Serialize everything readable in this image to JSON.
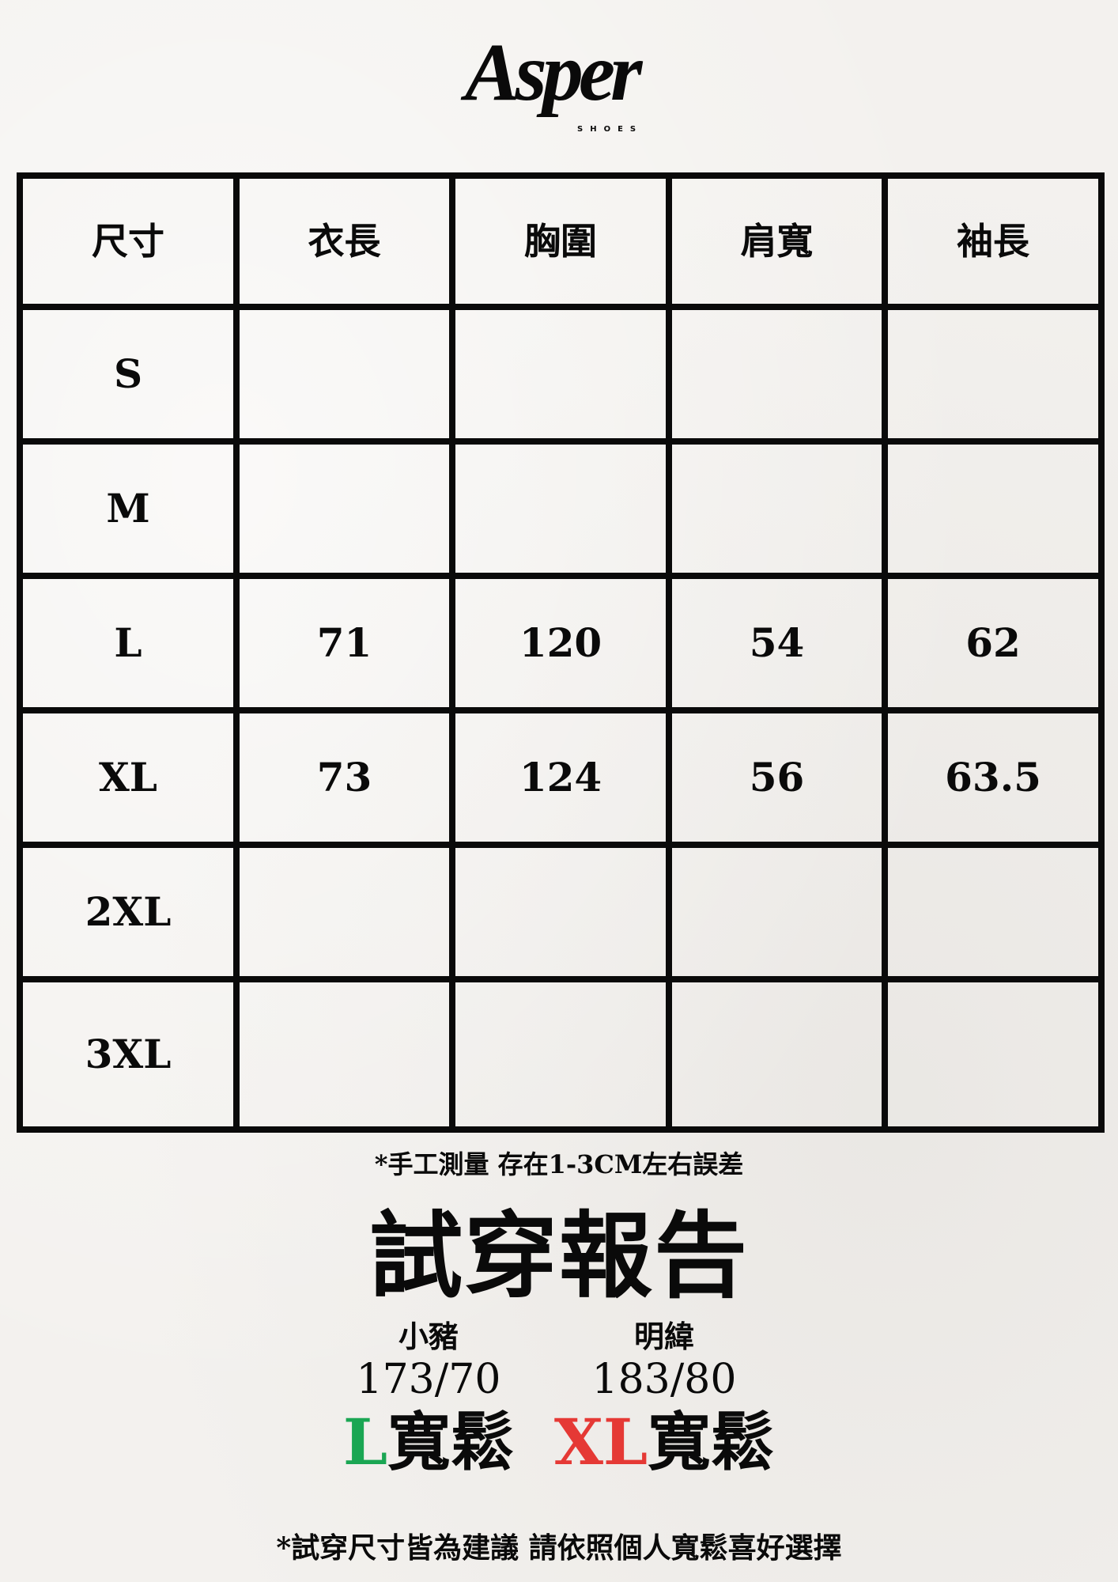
{
  "logo": {
    "text": "Asper",
    "subtext": "SHOES"
  },
  "table": {
    "headers": [
      "尺寸",
      "衣長",
      "胸圍",
      "肩寬",
      "袖長"
    ],
    "rows": [
      [
        "S",
        "",
        "",
        "",
        ""
      ],
      [
        "M",
        "",
        "",
        "",
        ""
      ],
      [
        "L",
        "71",
        "120",
        "54",
        "62"
      ],
      [
        "XL",
        "73",
        "124",
        "56",
        "63.5"
      ],
      [
        "2XL",
        "",
        "",
        "",
        ""
      ],
      [
        "3XL",
        "",
        "",
        "",
        ""
      ]
    ]
  },
  "note_measure": "*手工測量  存在1-3CM左右誤差",
  "report": {
    "title": "試穿報告",
    "testers": [
      {
        "name": "小豬",
        "measurements": "173/70",
        "size": "L",
        "fit": "寬鬆",
        "size_color": "#1aa653"
      },
      {
        "name": "明緯",
        "measurements": "183/80",
        "size": "XL",
        "fit": "寬鬆",
        "size_color": "#e53935"
      }
    ]
  },
  "note_suggestion": "*試穿尺寸皆為建議  請依照個人寬鬆喜好選擇"
}
